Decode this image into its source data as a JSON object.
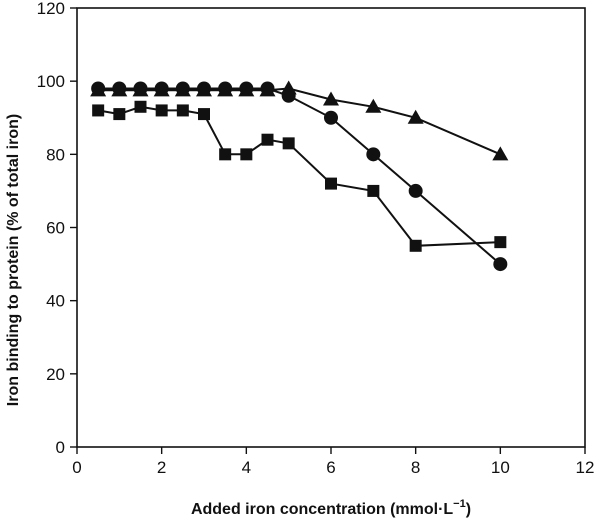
{
  "chart_data": {
    "type": "line",
    "xlabel": "Added iron concentration (mmol·L",
    "xlabel_sup": "−1",
    "xlabel_close": ")",
    "ylabel": "Iron binding to protein (% of total iron)",
    "xlim": [
      0,
      12
    ],
    "ylim": [
      0,
      120
    ],
    "x_ticks": [
      0,
      2,
      4,
      6,
      8,
      10,
      12
    ],
    "y_ticks": [
      0,
      20,
      40,
      60,
      80,
      100,
      120
    ],
    "grid": false,
    "legend": "none",
    "series": [
      {
        "marker": "circle",
        "color": "#111111",
        "x": [
          0.5,
          1,
          1.5,
          2,
          2.5,
          3,
          3.5,
          4,
          4.5,
          5,
          6,
          7,
          8,
          10
        ],
        "values": [
          98,
          98,
          98,
          98,
          98,
          98,
          98,
          98,
          98,
          96,
          90,
          80,
          70,
          50
        ]
      },
      {
        "marker": "triangle",
        "color": "#111111",
        "x": [
          0.5,
          1,
          1.5,
          2,
          2.5,
          3,
          3.5,
          4,
          4.5,
          5,
          6,
          7,
          8,
          10
        ],
        "values": [
          97.5,
          97.5,
          97.5,
          97.5,
          97.5,
          97.5,
          97.5,
          97.5,
          97.5,
          98,
          95,
          93,
          90,
          80
        ]
      },
      {
        "marker": "square",
        "color": "#111111",
        "x": [
          0.5,
          1,
          1.5,
          2,
          2.5,
          3,
          3.5,
          4,
          4.5,
          5,
          6,
          7,
          8,
          10
        ],
        "values": [
          92,
          91,
          93,
          92,
          92,
          91,
          80,
          80,
          84,
          83,
          72,
          70,
          55,
          56
        ]
      }
    ]
  }
}
